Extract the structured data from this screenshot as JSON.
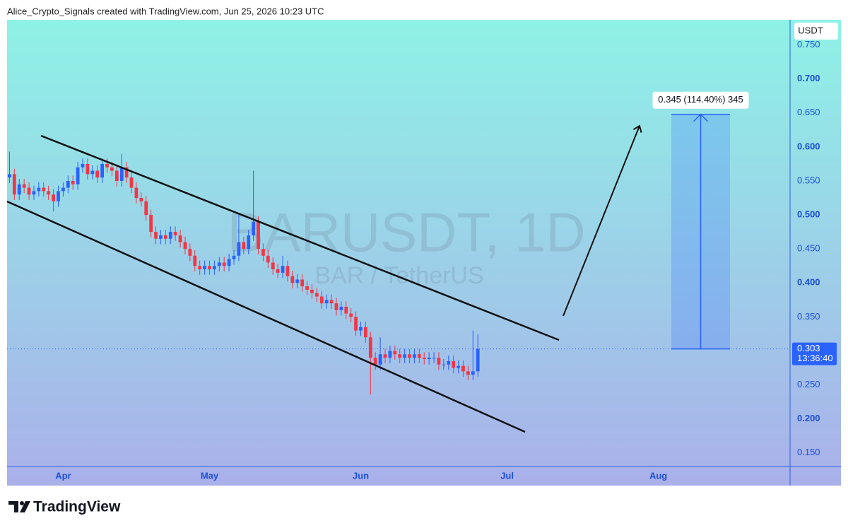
{
  "chart_data": {
    "type": "candlestick",
    "title": "Alice_Crypto_Signals created with TradingView.com, Jun 25, 2026 10:23 UTC",
    "watermark": "BARUSDT, 1D",
    "subtitle": "BAR / TetherUS",
    "y_axis_label": "USDT",
    "x": [
      0,
      1,
      2,
      3,
      4,
      5,
      6,
      7,
      8,
      9,
      10,
      11,
      12,
      13,
      14,
      15,
      16,
      17,
      18,
      19,
      20,
      21,
      22,
      23,
      24,
      25,
      26,
      27,
      28,
      29,
      30,
      31,
      32,
      33,
      34,
      35,
      36,
      37,
      38,
      39,
      40,
      41,
      42,
      43,
      44,
      45,
      46,
      47,
      48,
      49,
      50,
      51,
      52,
      53,
      54,
      55,
      56,
      57,
      58,
      59,
      60,
      61,
      62,
      63,
      64,
      65,
      66,
      67,
      68,
      69,
      70,
      71,
      72,
      73,
      74,
      75,
      76,
      77,
      78,
      79,
      80,
      81,
      82,
      83,
      84,
      85,
      86,
      87,
      88,
      89,
      90,
      91,
      92,
      93,
      94,
      95,
      96
    ],
    "open": [
      0.555,
      0.56,
      0.53,
      0.545,
      0.54,
      0.53,
      0.535,
      0.54,
      0.535,
      0.53,
      0.52,
      0.535,
      0.54,
      0.55,
      0.545,
      0.57,
      0.575,
      0.56,
      0.565,
      0.555,
      0.575,
      0.57,
      0.565,
      0.55,
      0.57,
      0.555,
      0.54,
      0.525,
      0.52,
      0.5,
      0.475,
      0.465,
      0.47,
      0.465,
      0.475,
      0.47,
      0.46,
      0.45,
      0.44,
      0.425,
      0.42,
      0.425,
      0.42,
      0.425,
      0.43,
      0.425,
      0.435,
      0.44,
      0.46,
      0.45,
      0.47,
      0.49,
      0.45,
      0.44,
      0.43,
      0.42,
      0.415,
      0.425,
      0.41,
      0.4,
      0.405,
      0.395,
      0.39,
      0.385,
      0.38,
      0.37,
      0.375,
      0.37,
      0.36,
      0.365,
      0.355,
      0.35,
      0.33,
      0.335,
      0.32,
      0.29,
      0.28,
      0.295,
      0.29,
      0.3,
      0.295,
      0.29,
      0.295,
      0.29,
      0.295,
      0.29,
      0.288,
      0.29,
      0.29,
      0.28,
      0.28,
      0.285,
      0.275,
      0.278,
      0.27,
      0.265,
      0.27
    ],
    "high": [
      0.593,
      0.568,
      0.553,
      0.553,
      0.548,
      0.543,
      0.548,
      0.548,
      0.543,
      0.538,
      0.543,
      0.548,
      0.558,
      0.558,
      0.578,
      0.583,
      0.583,
      0.573,
      0.573,
      0.583,
      0.583,
      0.578,
      0.573,
      0.59,
      0.578,
      0.563,
      0.548,
      0.533,
      0.528,
      0.508,
      0.483,
      0.478,
      0.478,
      0.483,
      0.483,
      0.478,
      0.468,
      0.458,
      0.448,
      0.433,
      0.433,
      0.433,
      0.433,
      0.438,
      0.438,
      0.443,
      0.448,
      0.5,
      0.468,
      0.478,
      0.565,
      0.498,
      0.458,
      0.448,
      0.438,
      0.428,
      0.44,
      0.433,
      0.418,
      0.413,
      0.413,
      0.403,
      0.398,
      0.393,
      0.388,
      0.383,
      0.383,
      0.378,
      0.373,
      0.373,
      0.363,
      0.358,
      0.343,
      0.343,
      0.328,
      0.298,
      0.32,
      0.303,
      0.308,
      0.308,
      0.303,
      0.303,
      0.303,
      0.303,
      0.303,
      0.298,
      0.298,
      0.298,
      0.298,
      0.288,
      0.293,
      0.293,
      0.286,
      0.286,
      0.278,
      0.33,
      0.325
    ],
    "low": [
      0.547,
      0.522,
      0.522,
      0.532,
      0.522,
      0.522,
      0.527,
      0.527,
      0.522,
      0.505,
      0.512,
      0.527,
      0.532,
      0.537,
      0.537,
      0.562,
      0.552,
      0.552,
      0.547,
      0.547,
      0.562,
      0.557,
      0.542,
      0.542,
      0.547,
      0.532,
      0.517,
      0.512,
      0.492,
      0.467,
      0.457,
      0.457,
      0.457,
      0.457,
      0.462,
      0.452,
      0.442,
      0.432,
      0.417,
      0.412,
      0.412,
      0.412,
      0.412,
      0.417,
      0.417,
      0.417,
      0.427,
      0.432,
      0.442,
      0.442,
      0.462,
      0.442,
      0.432,
      0.422,
      0.412,
      0.407,
      0.407,
      0.402,
      0.392,
      0.392,
      0.387,
      0.382,
      0.377,
      0.372,
      0.362,
      0.362,
      0.362,
      0.352,
      0.352,
      0.347,
      0.342,
      0.322,
      0.322,
      0.312,
      0.236,
      0.272,
      0.272,
      0.282,
      0.282,
      0.287,
      0.282,
      0.282,
      0.282,
      0.282,
      0.282,
      0.28,
      0.28,
      0.282,
      0.272,
      0.272,
      0.272,
      0.267,
      0.267,
      0.262,
      0.257,
      0.257,
      0.262
    ],
    "close": [
      0.56,
      0.53,
      0.545,
      0.54,
      0.53,
      0.535,
      0.54,
      0.535,
      0.53,
      0.52,
      0.535,
      0.54,
      0.55,
      0.545,
      0.57,
      0.575,
      0.56,
      0.565,
      0.555,
      0.575,
      0.57,
      0.565,
      0.55,
      0.57,
      0.555,
      0.54,
      0.525,
      0.52,
      0.5,
      0.475,
      0.465,
      0.47,
      0.465,
      0.475,
      0.47,
      0.46,
      0.45,
      0.44,
      0.425,
      0.42,
      0.425,
      0.42,
      0.425,
      0.43,
      0.425,
      0.435,
      0.44,
      0.46,
      0.45,
      0.47,
      0.49,
      0.45,
      0.44,
      0.43,
      0.42,
      0.415,
      0.425,
      0.41,
      0.4,
      0.405,
      0.395,
      0.39,
      0.385,
      0.38,
      0.37,
      0.375,
      0.37,
      0.36,
      0.365,
      0.355,
      0.35,
      0.33,
      0.335,
      0.32,
      0.29,
      0.28,
      0.295,
      0.29,
      0.3,
      0.295,
      0.29,
      0.295,
      0.29,
      0.295,
      0.29,
      0.288,
      0.29,
      0.29,
      0.28,
      0.28,
      0.285,
      0.275,
      0.278,
      0.27,
      0.265,
      0.27,
      0.303
    ],
    "xlim": [
      -0.5,
      160
    ],
    "ylim": [
      0.13,
      0.787
    ],
    "xticks": [
      {
        "value": 11,
        "label": "Apr"
      },
      {
        "value": 41,
        "label": "May"
      },
      {
        "value": 72,
        "label": "Jun"
      },
      {
        "value": 102,
        "label": "Jul"
      },
      {
        "value": 133,
        "label": "Aug"
      }
    ],
    "yticks": [
      {
        "value": 0.15,
        "label": "0.150"
      },
      {
        "value": 0.2,
        "label": "0.200"
      },
      {
        "value": 0.25,
        "label": "0.250"
      },
      {
        "value": 0.35,
        "label": "0.350"
      },
      {
        "value": 0.4,
        "label": "0.400"
      },
      {
        "value": 0.45,
        "label": "0.450"
      },
      {
        "value": 0.5,
        "label": "0.500"
      },
      {
        "value": 0.55,
        "label": "0.550"
      },
      {
        "value": 0.6,
        "label": "0.600"
      },
      {
        "value": 0.65,
        "label": "0.650"
      },
      {
        "value": 0.7,
        "label": "0.700"
      },
      {
        "value": 0.75,
        "label": "0.750"
      }
    ],
    "up_color": "#2962ff",
    "down_color": "#f23645",
    "countdown": "13:36:40",
    "measure": {
      "label": "0.345 (114.40%) 345",
      "change": 0.345
    }
  },
  "brand": "TradingView"
}
